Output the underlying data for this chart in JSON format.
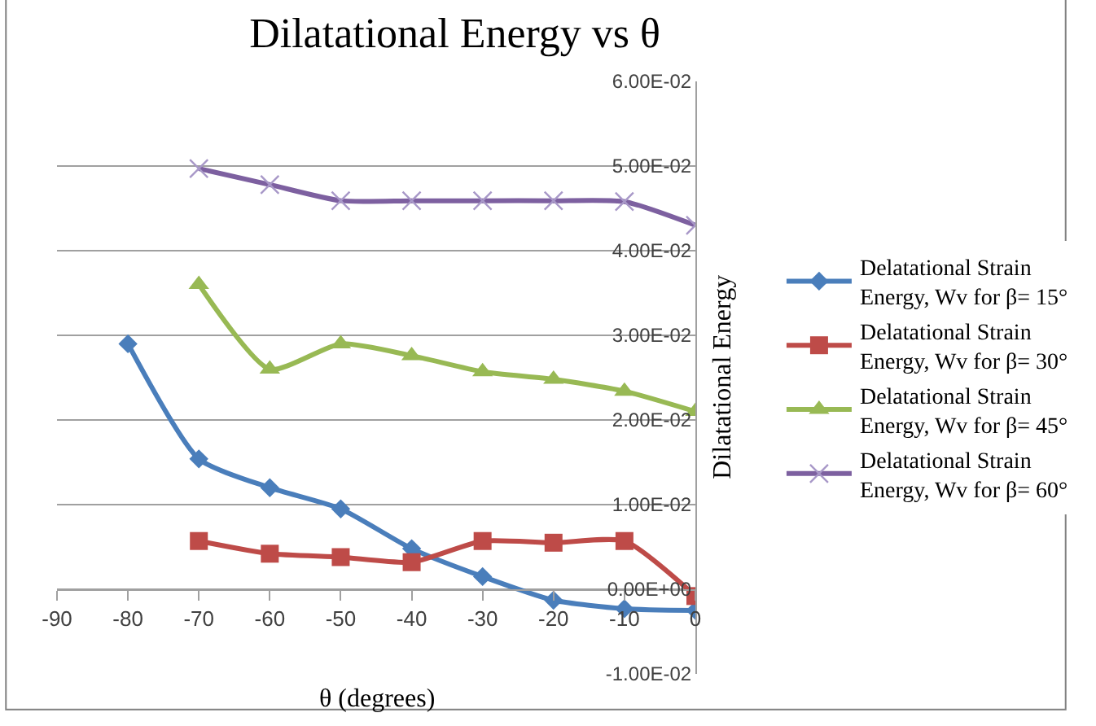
{
  "chart_data": {
    "type": "line",
    "title": "Dilatational Energy vs θ",
    "xlabel": "θ (degrees)",
    "ylabel": "Dilatational Energy",
    "x": [
      -80,
      -70,
      -60,
      -50,
      -40,
      -30,
      -20,
      -10,
      0
    ],
    "series": [
      {
        "name": "Delatational Strain Energy, Wv for β= 15°",
        "color": "#4a7ebb",
        "marker": "diamond",
        "values": [
          0.029,
          0.0154,
          0.012,
          0.0095,
          0.0048,
          0.0015,
          -0.0013,
          -0.0023,
          -0.0025
        ]
      },
      {
        "name": "Delatational Strain Energy, Wv for β= 30°",
        "color": "#be4b48",
        "marker": "square",
        "values": [
          null,
          0.0057,
          0.0042,
          0.0038,
          0.0032,
          0.0057,
          0.0055,
          0.0057,
          -0.0008
        ]
      },
      {
        "name": "Delatational Strain Energy, Wv for β= 45°",
        "color": "#98b954",
        "marker": "triangle",
        "values": [
          null,
          0.036,
          0.026,
          0.029,
          0.0276,
          0.0257,
          0.0248,
          0.0234,
          0.021
        ]
      },
      {
        "name": "Delatational Strain Energy, Wv for β= 60°",
        "color": "#7d60a0",
        "marker": "cross",
        "values": [
          null,
          0.0497,
          0.0478,
          0.0459,
          0.0459,
          0.0459,
          0.0459,
          0.0458,
          0.043
        ]
      }
    ],
    "xlim": [
      -90,
      0
    ],
    "xticks": [
      -90,
      -80,
      -70,
      -60,
      -50,
      -40,
      -30,
      -20,
      -10,
      0
    ],
    "ylim": [
      -0.01,
      0.06
    ],
    "yticks": [
      {
        "value": -0.01,
        "label": "-1.00E-02"
      },
      {
        "value": 0,
        "label": "0.00E+00"
      },
      {
        "value": 0.01,
        "label": "1.00E-02"
      },
      {
        "value": 0.02,
        "label": "2.00E-02"
      },
      {
        "value": 0.03,
        "label": "3.00E-02"
      },
      {
        "value": 0.04,
        "label": "4.00E-02"
      },
      {
        "value": 0.05,
        "label": "5.00E-02"
      },
      {
        "value": 0.06,
        "label": "6.00E-02"
      }
    ],
    "grid": "y",
    "legend": "right",
    "line_style": "solid"
  }
}
